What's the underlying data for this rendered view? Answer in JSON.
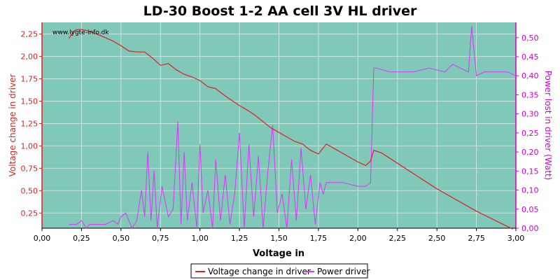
{
  "chart_data": {
    "type": "line",
    "title": "LD-30 Boost 1-2 AA cell 3V HL driver",
    "watermark": "www.lygte-info.dk",
    "xlabel": "Voltage in",
    "ylabel_left": "Voltage change in driver",
    "ylabel_right": "Power lost in driver (Watt)",
    "xlim": [
      0,
      3.0
    ],
    "ylim_left": [
      0.08,
      2.38
    ],
    "ylim_right": [
      0,
      0.54
    ],
    "xticks": [
      "0,00",
      "0,25",
      "0,50",
      "0,75",
      "1,00",
      "1,25",
      "1,50",
      "1,75",
      "2,00",
      "2,25",
      "2,50",
      "2,75",
      "3,00"
    ],
    "yticks_left": [
      "0,25",
      "0,50",
      "0,75",
      "1,00",
      "1,25",
      "1,50",
      "1,75",
      "2,00",
      "2,25"
    ],
    "yticks_right": [
      "0,00",
      "0,05",
      "0,10",
      "0,15",
      "0,20",
      "0,25",
      "0,30",
      "0,35",
      "0,40",
      "0,45",
      "0,50"
    ],
    "grid": true,
    "legend_position": "bottom-center",
    "colors": {
      "plot_bg": "#80c8b8",
      "grid": "#c8e6de",
      "voltage": "#dd2020",
      "power": "#dd33ff",
      "left_axis": "#dd2020",
      "right_axis": "#cc00cc"
    },
    "series": [
      {
        "name": "Voltage change in driver",
        "axis": "left",
        "x": [
          0.17,
          0.2,
          0.22,
          0.25,
          0.28,
          0.3,
          0.33,
          0.36,
          0.4,
          0.45,
          0.5,
          0.55,
          0.6,
          0.65,
          0.7,
          0.75,
          0.8,
          0.85,
          0.9,
          0.95,
          1.0,
          1.05,
          1.1,
          1.15,
          1.2,
          1.25,
          1.3,
          1.35,
          1.4,
          1.45,
          1.5,
          1.55,
          1.6,
          1.65,
          1.7,
          1.75,
          1.8,
          1.85,
          1.9,
          2.0,
          2.05,
          2.08,
          2.1,
          2.15,
          2.5,
          2.75,
          2.98
        ],
        "y": [
          2.2,
          2.28,
          2.3,
          2.3,
          2.29,
          2.28,
          2.26,
          2.24,
          2.21,
          2.17,
          2.12,
          2.06,
          2.05,
          2.05,
          1.98,
          1.9,
          1.92,
          1.85,
          1.8,
          1.77,
          1.73,
          1.66,
          1.64,
          1.57,
          1.51,
          1.45,
          1.4,
          1.34,
          1.27,
          1.2,
          1.15,
          1.1,
          1.05,
          1.02,
          0.95,
          0.91,
          1.02,
          0.97,
          0.92,
          0.82,
          0.78,
          0.83,
          0.95,
          0.92,
          0.52,
          0.27,
          0.07
        ]
      },
      {
        "name": "Power driver",
        "axis": "right",
        "x": [
          0.17,
          0.22,
          0.25,
          0.28,
          0.3,
          0.35,
          0.4,
          0.45,
          0.48,
          0.5,
          0.53,
          0.57,
          0.6,
          0.63,
          0.65,
          0.67,
          0.69,
          0.71,
          0.73,
          0.76,
          0.8,
          0.83,
          0.86,
          0.88,
          0.9,
          0.92,
          0.95,
          0.98,
          1.0,
          1.02,
          1.05,
          1.08,
          1.1,
          1.13,
          1.16,
          1.19,
          1.22,
          1.25,
          1.28,
          1.31,
          1.34,
          1.37,
          1.4,
          1.43,
          1.46,
          1.49,
          1.52,
          1.55,
          1.58,
          1.61,
          1.64,
          1.67,
          1.7,
          1.73,
          1.76,
          1.78,
          1.8,
          1.85,
          1.9,
          2.0,
          2.05,
          2.08,
          2.1,
          2.12,
          2.2,
          2.25,
          2.35,
          2.45,
          2.55,
          2.6,
          2.65,
          2.7,
          2.72,
          2.75,
          2.8,
          2.85,
          2.9,
          2.95,
          3.0
        ],
        "y": [
          0.01,
          0.01,
          0.02,
          0.0,
          0.01,
          0.01,
          0.01,
          0.02,
          0.01,
          0.03,
          0.04,
          0.0,
          0.02,
          0.1,
          0.03,
          0.2,
          0.02,
          0.15,
          0.0,
          0.11,
          0.03,
          0.05,
          0.28,
          0.01,
          0.2,
          0.02,
          0.12,
          0.0,
          0.22,
          0.04,
          0.1,
          0.0,
          0.18,
          0.02,
          0.14,
          0.01,
          0.09,
          0.25,
          0.0,
          0.22,
          0.03,
          0.19,
          0.0,
          0.15,
          0.27,
          0.04,
          0.09,
          0.0,
          0.18,
          0.02,
          0.21,
          0.05,
          0.14,
          0.01,
          0.12,
          0.09,
          0.12,
          0.12,
          0.12,
          0.11,
          0.11,
          0.12,
          0.42,
          0.42,
          0.41,
          0.41,
          0.41,
          0.42,
          0.41,
          0.43,
          0.42,
          0.41,
          0.53,
          0.4,
          0.41,
          0.41,
          0.41,
          0.41,
          0.4
        ]
      }
    ]
  }
}
